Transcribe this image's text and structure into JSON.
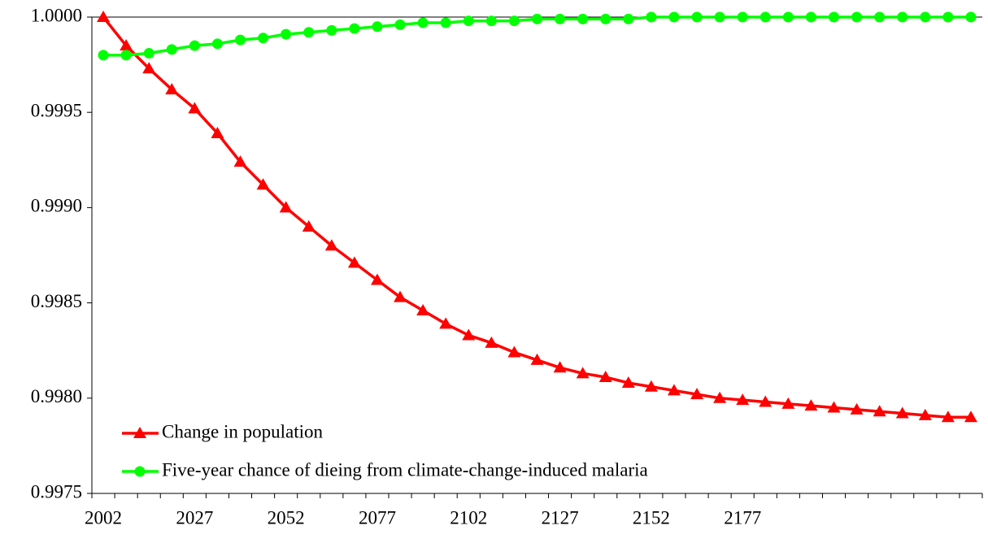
{
  "chart_data": {
    "type": "line",
    "categories": [
      "2002",
      null,
      null,
      null,
      "2027",
      null,
      null,
      null,
      "2052",
      null,
      null,
      null,
      "2077",
      null,
      null,
      null,
      "2102",
      null,
      null,
      null,
      "2127",
      null,
      null,
      null,
      "2152",
      null,
      null,
      null,
      "2177",
      null,
      null,
      null,
      null,
      null,
      null,
      null,
      null,
      null,
      null
    ],
    "series": [
      {
        "name": "Change in population",
        "color": "#ff0000",
        "marker": "triangle",
        "values": [
          1.0,
          0.99985,
          0.99973,
          0.99962,
          0.99952,
          0.99939,
          0.99924,
          0.99912,
          0.999,
          0.9989,
          0.9988,
          0.99871,
          0.99862,
          0.99853,
          0.99846,
          0.99839,
          0.99833,
          0.99829,
          0.99824,
          0.9982,
          0.99816,
          0.99813,
          0.99811,
          0.99808,
          0.99806,
          0.99804,
          0.99802,
          0.998,
          0.99799,
          0.99798,
          0.99797,
          0.99796,
          0.99795,
          0.99794,
          0.99793,
          0.99792,
          0.99791,
          0.9979,
          0.9979
        ]
      },
      {
        "name": "Five-year chance of dieing from climate-change-induced malaria",
        "color": "#00ff00",
        "marker": "circle",
        "values": [
          0.9998,
          0.9998,
          0.99981,
          0.99983,
          0.99985,
          0.99986,
          0.99988,
          0.99989,
          0.99991,
          0.99992,
          0.99993,
          0.99994,
          0.99995,
          0.99996,
          0.99997,
          0.99997,
          0.99998,
          0.99998,
          0.99998,
          0.99999,
          0.99999,
          0.99999,
          0.99999,
          0.99999,
          1.0,
          1.0,
          1.0,
          1.0,
          1.0,
          1.0,
          1.0,
          1.0,
          1.0,
          1.0,
          1.0,
          1.0,
          1.0,
          1.0,
          1.0
        ]
      }
    ],
    "ylim": [
      0.9975,
      1.0
    ],
    "yticks": [
      0.9975,
      {
        "value": 0.998,
        "label": "0.9980"
      },
      0.9985,
      {
        "value": 0.999,
        "label": "0.9990"
      },
      0.9995,
      {
        "value": 1.0,
        "label": "1.0000"
      }
    ],
    "legend": "lower left",
    "grid": false
  }
}
